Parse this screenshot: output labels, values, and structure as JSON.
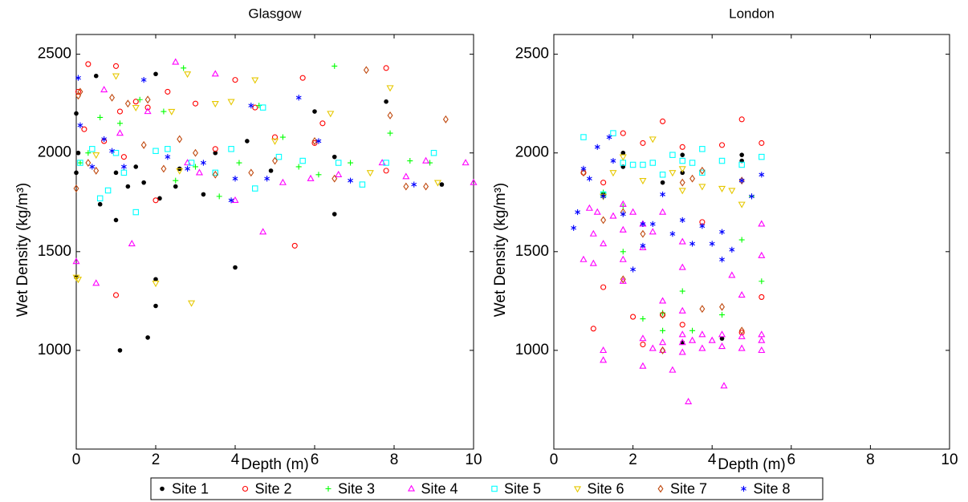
{
  "legend": {
    "position": "bottom",
    "entries": [
      {
        "name": "Site 1",
        "color": "#000000",
        "marker": "dot"
      },
      {
        "name": "Site 2",
        "color": "#ff0000",
        "marker": "circle"
      },
      {
        "name": "Site 3",
        "color": "#00ff00",
        "marker": "plus"
      },
      {
        "name": "Site 4",
        "color": "#ff00ff",
        "marker": "triangle-up"
      },
      {
        "name": "Site 5",
        "color": "#00ffff",
        "marker": "square"
      },
      {
        "name": "Site 6",
        "color": "#e6c800",
        "marker": "triangle-down"
      },
      {
        "name": "Site 7",
        "color": "#c04a10",
        "marker": "diamond"
      },
      {
        "name": "Site 8",
        "color": "#0000ff",
        "marker": "star"
      }
    ]
  },
  "chart_data": [
    {
      "type": "scatter",
      "title": "Glasgow",
      "xlabel": "Depth (m)",
      "ylabel": "Wet Density (kg/m³)",
      "xlim": [
        0,
        10
      ],
      "ylim": [
        500,
        2600
      ],
      "xticks": [
        0,
        2,
        4,
        6,
        8,
        10
      ],
      "yticks": [
        1000,
        1500,
        2000,
        2500
      ],
      "series": [
        {
          "x": [
            0,
            0,
            0,
            0.05,
            0.5,
            0.6,
            1,
            1,
            1.1,
            1.5,
            1.7,
            1.8,
            2,
            2,
            2,
            2.1,
            2.5,
            3.2,
            3.5,
            4,
            4.3,
            4.9,
            6,
            6.5,
            6.5,
            7.8,
            9.2,
            2.6,
            1.3
          ],
          "y": [
            2200,
            1900,
            1370,
            2000,
            2390,
            1740,
            1660,
            1900,
            1000,
            1930,
            1850,
            1065,
            2400,
            1360,
            1225,
            1770,
            1830,
            1790,
            2000,
            1420,
            2060,
            1910,
            2210,
            1690,
            1980,
            2260,
            1840,
            1920,
            1830
          ]
        },
        {
          "x": [
            0.05,
            0.3,
            1,
            1,
            1.1,
            1.5,
            1.8,
            2,
            2.3,
            3,
            3.5,
            4,
            4.5,
            5,
            5.5,
            5.7,
            6,
            6.2,
            7.8,
            7.8,
            0.2,
            1.2,
            0.7
          ],
          "y": [
            2310,
            2450,
            2440,
            1280,
            2210,
            2260,
            2230,
            1760,
            2310,
            2250,
            2020,
            2370,
            2230,
            2080,
            1530,
            2380,
            2050,
            2150,
            2430,
            1910,
            2120,
            1980,
            2060
          ]
        },
        {
          "x": [
            0.3,
            0.6,
            1.1,
            1.6,
            2.2,
            2.7,
            3,
            3.6,
            4.1,
            4.6,
            5.2,
            5.6,
            6.1,
            6.5,
            6.9,
            7.9,
            8.4,
            8.9,
            0.1,
            2.5
          ],
          "y": [
            2000,
            2180,
            2150,
            2270,
            2210,
            2430,
            1930,
            1780,
            1950,
            2240,
            2080,
            1930,
            1890,
            2440,
            1950,
            2100,
            1960,
            1950,
            1950,
            1860
          ]
        },
        {
          "x": [
            0,
            0.5,
            0.7,
            1.4,
            1.8,
            2.5,
            3.1,
            3.5,
            4,
            4.7,
            5.2,
            5.9,
            6.6,
            7.7,
            8.3,
            8.8,
            9.8,
            10,
            1.1,
            2.8
          ],
          "y": [
            1450,
            1340,
            2320,
            1540,
            2210,
            2460,
            1900,
            2400,
            1760,
            1600,
            1850,
            1870,
            1890,
            1950,
            1880,
            1960,
            1950,
            1850,
            2100,
            1950
          ]
        },
        {
          "x": [
            0.1,
            0.4,
            0.6,
            1,
            1.2,
            1.5,
            2,
            2.3,
            2.9,
            3.5,
            3.9,
            4.5,
            5.1,
            5.7,
            6.6,
            7.2,
            7.8,
            9,
            0.8,
            4.7
          ],
          "y": [
            1950,
            2020,
            1770,
            2000,
            1900,
            1700,
            2010,
            2020,
            1950,
            1900,
            2020,
            1820,
            1980,
            1960,
            1950,
            1840,
            1950,
            2000,
            1810,
            2230
          ]
        },
        {
          "x": [
            0,
            0.05,
            1,
            1.5,
            2,
            2.4,
            2.8,
            2.9,
            3.5,
            3.9,
            4.5,
            5,
            6.4,
            7.4,
            7.9,
            9.1,
            0.5,
            2.6
          ],
          "y": [
            1370,
            1360,
            2390,
            2230,
            1340,
            2210,
            2400,
            1240,
            2250,
            2260,
            2370,
            2060,
            2200,
            1900,
            2330,
            1850,
            1990,
            1910
          ]
        },
        {
          "x": [
            0,
            0.05,
            0.1,
            0.5,
            0.9,
            1.3,
            1.8,
            2.2,
            2.6,
            3,
            3.5,
            4.4,
            5,
            6,
            6.5,
            7.3,
            7.9,
            8.3,
            8.8,
            9.3,
            0.3,
            1.7
          ],
          "y": [
            1820,
            2290,
            2310,
            1910,
            2280,
            2250,
            2270,
            1920,
            2070,
            2000,
            1890,
            1900,
            1960,
            2060,
            1870,
            2420,
            2190,
            1830,
            1830,
            2170,
            1950,
            2040
          ]
        },
        {
          "x": [
            0.05,
            0.1,
            0.4,
            0.9,
            1.2,
            1.7,
            2.3,
            2.8,
            3.2,
            3.9,
            4,
            4.4,
            4.8,
            5.6,
            6.1,
            6.9,
            8.5,
            0.7
          ],
          "y": [
            2380,
            2140,
            1930,
            2010,
            1930,
            2370,
            1980,
            1920,
            1950,
            1760,
            1870,
            2240,
            1870,
            2280,
            2060,
            1860,
            1840,
            2070
          ]
        }
      ]
    },
    {
      "type": "scatter",
      "title": "London",
      "xlabel": "Depth (m)",
      "ylabel": "Wet Density (kg/m³)",
      "xlim": [
        0,
        10
      ],
      "ylim": [
        500,
        2600
      ],
      "xticks": [
        0,
        2,
        4,
        6,
        8,
        10
      ],
      "yticks": [
        1000,
        1500,
        2000,
        2500
      ],
      "series": [
        {
          "x": [
            1.75,
            1.75,
            3.25,
            3.25,
            4.75,
            4.75,
            1.25,
            2.75,
            4.25,
            3.25
          ],
          "y": [
            2000,
            1930,
            1990,
            1900,
            1990,
            1960,
            1790,
            1850,
            1060,
            1040
          ]
        },
        {
          "x": [
            0.75,
            1,
            1.25,
            1.75,
            2.25,
            2.75,
            2.75,
            3.25,
            3.75,
            4.25,
            4.75,
            5.25,
            1.25,
            2,
            3.25,
            5.25,
            4.75,
            2.25
          ],
          "y": [
            1900,
            1110,
            1320,
            2100,
            2050,
            2160,
            1180,
            2030,
            1650,
            2040,
            2170,
            2050,
            1850,
            1170,
            1130,
            1270,
            1090,
            1030
          ]
        },
        {
          "x": [
            1.25,
            1.75,
            2.25,
            2.75,
            3.25,
            3.5,
            4.25,
            4.75,
            5,
            5.25,
            1.75,
            2.75
          ],
          "y": [
            1800,
            1730,
            1160,
            1190,
            1300,
            1100,
            1180,
            1560,
            1780,
            1350,
            1500,
            1100
          ]
        },
        {
          "x": [
            0.75,
            0.9,
            1,
            1.1,
            1.25,
            1.25,
            1.5,
            1.75,
            1.75,
            1.75,
            2,
            2.25,
            2.25,
            2.25,
            2.5,
            2.75,
            2.75,
            2.75,
            3,
            3.25,
            3.25,
            3.25,
            3.25,
            3.4,
            3.5,
            3.75,
            3.75,
            4,
            4.25,
            4.25,
            4.3,
            4.5,
            4.75,
            4.75,
            5.25,
            5.25,
            5.25,
            5.25,
            1.25,
            2.25,
            3.25,
            1,
            2.75,
            4.75,
            5.25,
            3.25,
            2.5,
            1.75
          ],
          "y": [
            1460,
            1720,
            1440,
            1700,
            1540,
            950,
            1680,
            1610,
            1460,
            1350,
            1700,
            1640,
            1520,
            1060,
            1600,
            1040,
            1000,
            1700,
            900,
            1080,
            1040,
            990,
            1550,
            740,
            1050,
            1080,
            1010,
            1050,
            1080,
            1020,
            820,
            1380,
            1070,
            1010,
            1640,
            1480,
            1080,
            1000,
            1000,
            920,
            1420,
            1590,
            1250,
            1280,
            1050,
            1200,
            1010,
            1740
          ]
        },
        {
          "x": [
            0.75,
            1.5,
            1.75,
            2,
            2.25,
            2.5,
            2.75,
            3,
            3.25,
            3.5,
            3.75,
            4.25,
            4.75,
            5.25,
            1.25,
            3.75
          ],
          "y": [
            2080,
            2100,
            1950,
            1940,
            1940,
            1950,
            1890,
            1990,
            1960,
            1950,
            2020,
            1960,
            1940,
            1980,
            1790,
            1900
          ]
        },
        {
          "x": [
            1.25,
            1.75,
            2.25,
            2.5,
            3,
            3.25,
            3.75,
            4.25,
            4.5,
            4.75,
            1.5,
            3.25
          ],
          "y": [
            1780,
            1980,
            1860,
            2070,
            1900,
            1920,
            1830,
            1820,
            1810,
            1740,
            1900,
            1810
          ]
        },
        {
          "x": [
            0.75,
            1.25,
            1.75,
            2.25,
            2.75,
            3.25,
            3.5,
            3.75,
            4.25,
            4.75,
            2.75,
            3.75,
            1.75,
            4.75
          ],
          "y": [
            1900,
            1660,
            1700,
            1590,
            1180,
            1850,
            1870,
            1210,
            1220,
            1860,
            1000,
            1910,
            1360,
            1100
          ]
        },
        {
          "x": [
            0.5,
            0.6,
            0.75,
            0.9,
            1.1,
            1.25,
            1.4,
            1.75,
            2,
            2.25,
            2.5,
            2.75,
            3,
            3.25,
            3.5,
            3.75,
            4,
            4.25,
            4.5,
            4.75,
            5,
            5.25,
            1.5,
            2.25,
            4.25
          ],
          "y": [
            1620,
            1700,
            1920,
            1870,
            2030,
            1780,
            2080,
            1690,
            1410,
            1530,
            1640,
            1790,
            1590,
            1660,
            1540,
            1630,
            1540,
            1600,
            1510,
            1860,
            1780,
            1890,
            1960,
            1640,
            1460
          ]
        }
      ]
    }
  ]
}
